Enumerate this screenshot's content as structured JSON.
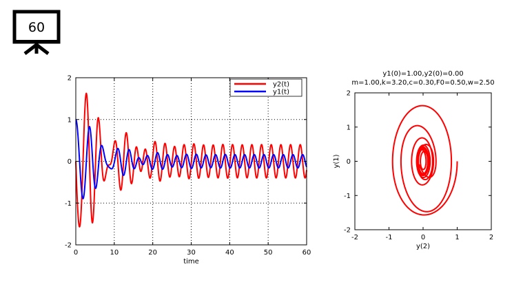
{
  "slide_badge": {
    "number": "60",
    "icon": "presentation-board-icon"
  },
  "chart_data": [
    {
      "type": "line",
      "xlabel": "time",
      "ylabel": "",
      "xlim": [
        0,
        60
      ],
      "ylim": [
        -2,
        2
      ],
      "xticks": [
        "0",
        "10",
        "20",
        "30",
        "40",
        "50",
        "60"
      ],
      "yticks": [
        "-2",
        "-1",
        "0",
        "1",
        "2"
      ],
      "grid": true,
      "legend_position": "top-right",
      "params": {
        "m": 1.0,
        "k": 3.2,
        "c": 0.3,
        "F0": 0.5,
        "w": 2.5,
        "y1_0": 1.0,
        "y2_0": 0.0
      },
      "series": [
        {
          "name": "y2(t)",
          "color": "#ff0000"
        },
        {
          "name": "y1(t)",
          "color": "#0000ff"
        }
      ]
    },
    {
      "type": "line",
      "title": "y1(0)=1.00,y2(0)=0.00",
      "subtitle": "m=1.00,k=3.20,c=0.30,F0=0.50,w=2.50",
      "xlabel": "y(2)",
      "ylabel": "y(1)",
      "xlim": [
        -2,
        2
      ],
      "ylim": [
        -2,
        2
      ],
      "xticks": [
        "-2",
        "-1",
        "0",
        "1",
        "2"
      ],
      "yticks": [
        "-2",
        "-1",
        "0",
        "1",
        "2"
      ],
      "grid": false,
      "series": [
        {
          "color": "#ff0000"
        }
      ]
    }
  ]
}
